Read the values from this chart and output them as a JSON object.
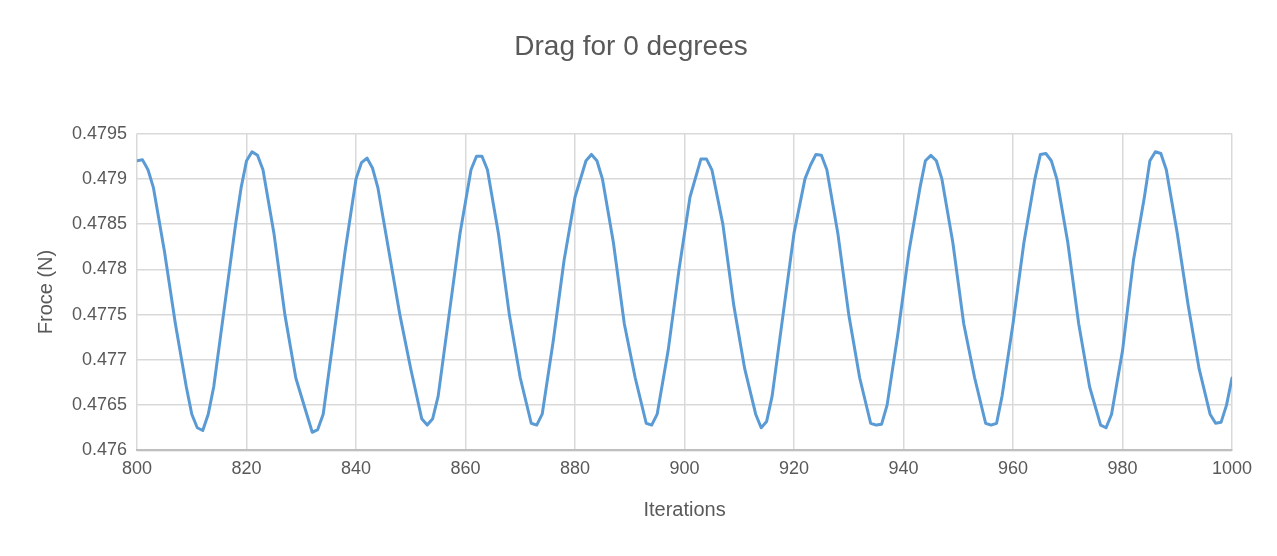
{
  "chart_data": {
    "type": "line",
    "title": "Drag for 0 degrees",
    "xlabel": "Iterations",
    "ylabel": "Froce (N)",
    "xlim": [
      800,
      1000
    ],
    "xticks": [
      800,
      820,
      840,
      860,
      880,
      900,
      920,
      940,
      960,
      980,
      1000
    ],
    "ylim": [
      0.476,
      0.4795
    ],
    "yticks": [
      0.476,
      0.4765,
      0.477,
      0.4775,
      0.478,
      0.4785,
      0.479,
      0.4795
    ],
    "grid": true,
    "legend": false,
    "marker": "none",
    "line_style": "solid",
    "series": [
      {
        "color": "#5b9bd5",
        "x": [
          800,
          801,
          802,
          803,
          805,
          807,
          809,
          810,
          811,
          812,
          813,
          814,
          816,
          818,
          819,
          820,
          821,
          822,
          823,
          825,
          827,
          829,
          831,
          832,
          833,
          834,
          836,
          838,
          839,
          840,
          841,
          842,
          843,
          844,
          846,
          848,
          850,
          852,
          853,
          854,
          855,
          857,
          859,
          861,
          862,
          863,
          864,
          866,
          868,
          870,
          872,
          873,
          874,
          876,
          878,
          880,
          882,
          883,
          884,
          885,
          887,
          889,
          891,
          893,
          894,
          895,
          897,
          899,
          901,
          903,
          904,
          905,
          907,
          909,
          911,
          913,
          914,
          915,
          916,
          918,
          920,
          922,
          923,
          924,
          925,
          926,
          928,
          930,
          932,
          934,
          935,
          936,
          937,
          939,
          941,
          943,
          944,
          945,
          946,
          947,
          949,
          951,
          953,
          955,
          956,
          957,
          958,
          960,
          962,
          964,
          965,
          966,
          967,
          968,
          970,
          972,
          974,
          976,
          977,
          978,
          980,
          982,
          984,
          985,
          986,
          987,
          988,
          990,
          992,
          994,
          996,
          997,
          998,
          999,
          1000
        ],
        "values": [
          0.4792,
          0.47921,
          0.4791,
          0.4789,
          0.4782,
          0.4774,
          0.4767,
          0.4764,
          0.47625,
          0.47622,
          0.4764,
          0.4767,
          0.4776,
          0.4785,
          0.4789,
          0.4792,
          0.4793,
          0.47926,
          0.4791,
          0.4784,
          0.4775,
          0.4768,
          0.4764,
          0.4762,
          0.47623,
          0.4764,
          0.4773,
          0.4782,
          0.4786,
          0.479,
          0.47918,
          0.47923,
          0.47912,
          0.4789,
          0.4782,
          0.4775,
          0.4769,
          0.47635,
          0.47628,
          0.47635,
          0.4766,
          0.4775,
          0.4784,
          0.4791,
          0.47925,
          0.47925,
          0.4791,
          0.4784,
          0.4775,
          0.4768,
          0.4763,
          0.47628,
          0.4764,
          0.4772,
          0.4781,
          0.4788,
          0.4792,
          0.47927,
          0.4792,
          0.479,
          0.4783,
          0.4774,
          0.4768,
          0.4763,
          0.47628,
          0.4764,
          0.4771,
          0.478,
          0.4788,
          0.47922,
          0.47922,
          0.4791,
          0.4785,
          0.4776,
          0.4769,
          0.4764,
          0.47625,
          0.47632,
          0.4766,
          0.4775,
          0.4784,
          0.479,
          0.47915,
          0.47927,
          0.47926,
          0.4791,
          0.4784,
          0.4775,
          0.4768,
          0.4763,
          0.47628,
          0.47629,
          0.4765,
          0.4773,
          0.4782,
          0.4789,
          0.4792,
          0.47926,
          0.4792,
          0.479,
          0.4783,
          0.4774,
          0.4768,
          0.4763,
          0.47628,
          0.4763,
          0.4766,
          0.4774,
          0.4783,
          0.479,
          0.47927,
          0.47928,
          0.4792,
          0.479,
          0.4783,
          0.4774,
          0.4767,
          0.47628,
          0.47625,
          0.4764,
          0.4771,
          0.4781,
          0.4788,
          0.4792,
          0.4793,
          0.47928,
          0.4791,
          0.4784,
          0.4776,
          0.4769,
          0.4764,
          0.4763,
          0.47631,
          0.4765,
          0.4768
        ]
      }
    ]
  }
}
